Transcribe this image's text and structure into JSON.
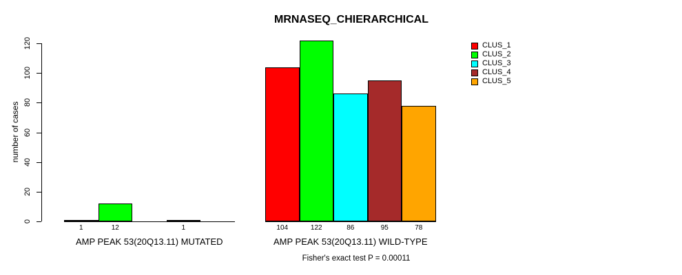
{
  "title": "MRNASEQ_CHIERARCHICAL",
  "footer": "Fisher's exact test P = 0.00011",
  "chart_data": {
    "type": "bar",
    "title": "MRNASEQ_CHIERARCHICAL",
    "xlabel": "",
    "ylabel": "number of cases",
    "ylim": [
      0,
      120
    ],
    "yticks": [
      0,
      20,
      40,
      60,
      80,
      100,
      120
    ],
    "grid": false,
    "legend_position": "top-right",
    "categories": [
      "AMP PEAK 53(20Q13.11) MUTATED",
      "AMP PEAK 53(20Q13.11) WILD-TYPE"
    ],
    "series": [
      {
        "name": "CLUS_1",
        "color": "#FF0000",
        "values": [
          1,
          104
        ]
      },
      {
        "name": "CLUS_2",
        "color": "#00FF00",
        "values": [
          12,
          122
        ]
      },
      {
        "name": "CLUS_3",
        "color": "#00FFFF",
        "values": [
          0,
          86
        ]
      },
      {
        "name": "CLUS_4",
        "color": "#A52A2A",
        "values": [
          1,
          95
        ]
      },
      {
        "name": "CLUS_5",
        "color": "#FFA500",
        "values": [
          0,
          78
        ]
      }
    ],
    "bar_value_labels": {
      "AMP PEAK 53(20Q13.11) MUTATED": [
        "1",
        "12",
        "",
        "1",
        ""
      ],
      "AMP PEAK 53(20Q13.11) WILD-TYPE": [
        "104",
        "122",
        "86",
        "95",
        "78"
      ]
    },
    "annotation": "Fisher's exact test P = 0.00011"
  },
  "colors": {
    "background": "#FFFFFF",
    "axis": "#000000",
    "text": "#000000"
  }
}
